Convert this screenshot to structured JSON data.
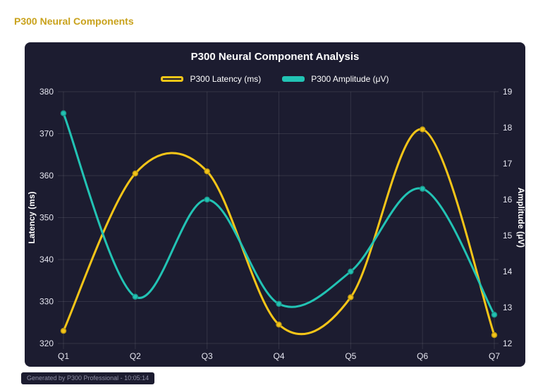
{
  "header": {
    "title": "P300 Neural Components"
  },
  "footer": {
    "text": "Generated by P300 Professional - 10:05:14"
  },
  "colors": {
    "page_bg": "#ffffff",
    "panel_bg": "#1c1c30",
    "header_text": "#c9a21c",
    "title_text": "#ffffff",
    "tick_text": "#e6e6f0",
    "grid_line": "rgba(255,255,255,0.10)",
    "footer_text": "#8f8fa6"
  },
  "chart_data": {
    "type": "line",
    "title": "P300 Neural Component Analysis",
    "categories": [
      "Q1",
      "Q2",
      "Q3",
      "Q4",
      "Q5",
      "Q6",
      "Q7"
    ],
    "series": [
      {
        "name": "P300 Latency (ms)",
        "axis": "left",
        "color": "#f5c518",
        "legend_swatch": "outline",
        "values": [
          323,
          360.5,
          361,
          324.5,
          331,
          371,
          322
        ]
      },
      {
        "name": "P300 Amplitude (μV)",
        "axis": "right",
        "color": "#22c3b4",
        "legend_swatch": "solid",
        "values": [
          18.4,
          13.3,
          16.0,
          13.1,
          14.0,
          16.3,
          12.8
        ]
      }
    ],
    "left_axis": {
      "label": "Latency (ms)",
      "min": 320,
      "max": 380,
      "ticks": [
        320,
        330,
        340,
        350,
        360,
        370,
        380
      ]
    },
    "right_axis": {
      "label": "Amplitude (μV)",
      "min": 12,
      "max": 19,
      "ticks": [
        12,
        13,
        14,
        15,
        16,
        17,
        18,
        19
      ]
    },
    "grid": true,
    "legend_position": "top",
    "curve": "smooth"
  }
}
